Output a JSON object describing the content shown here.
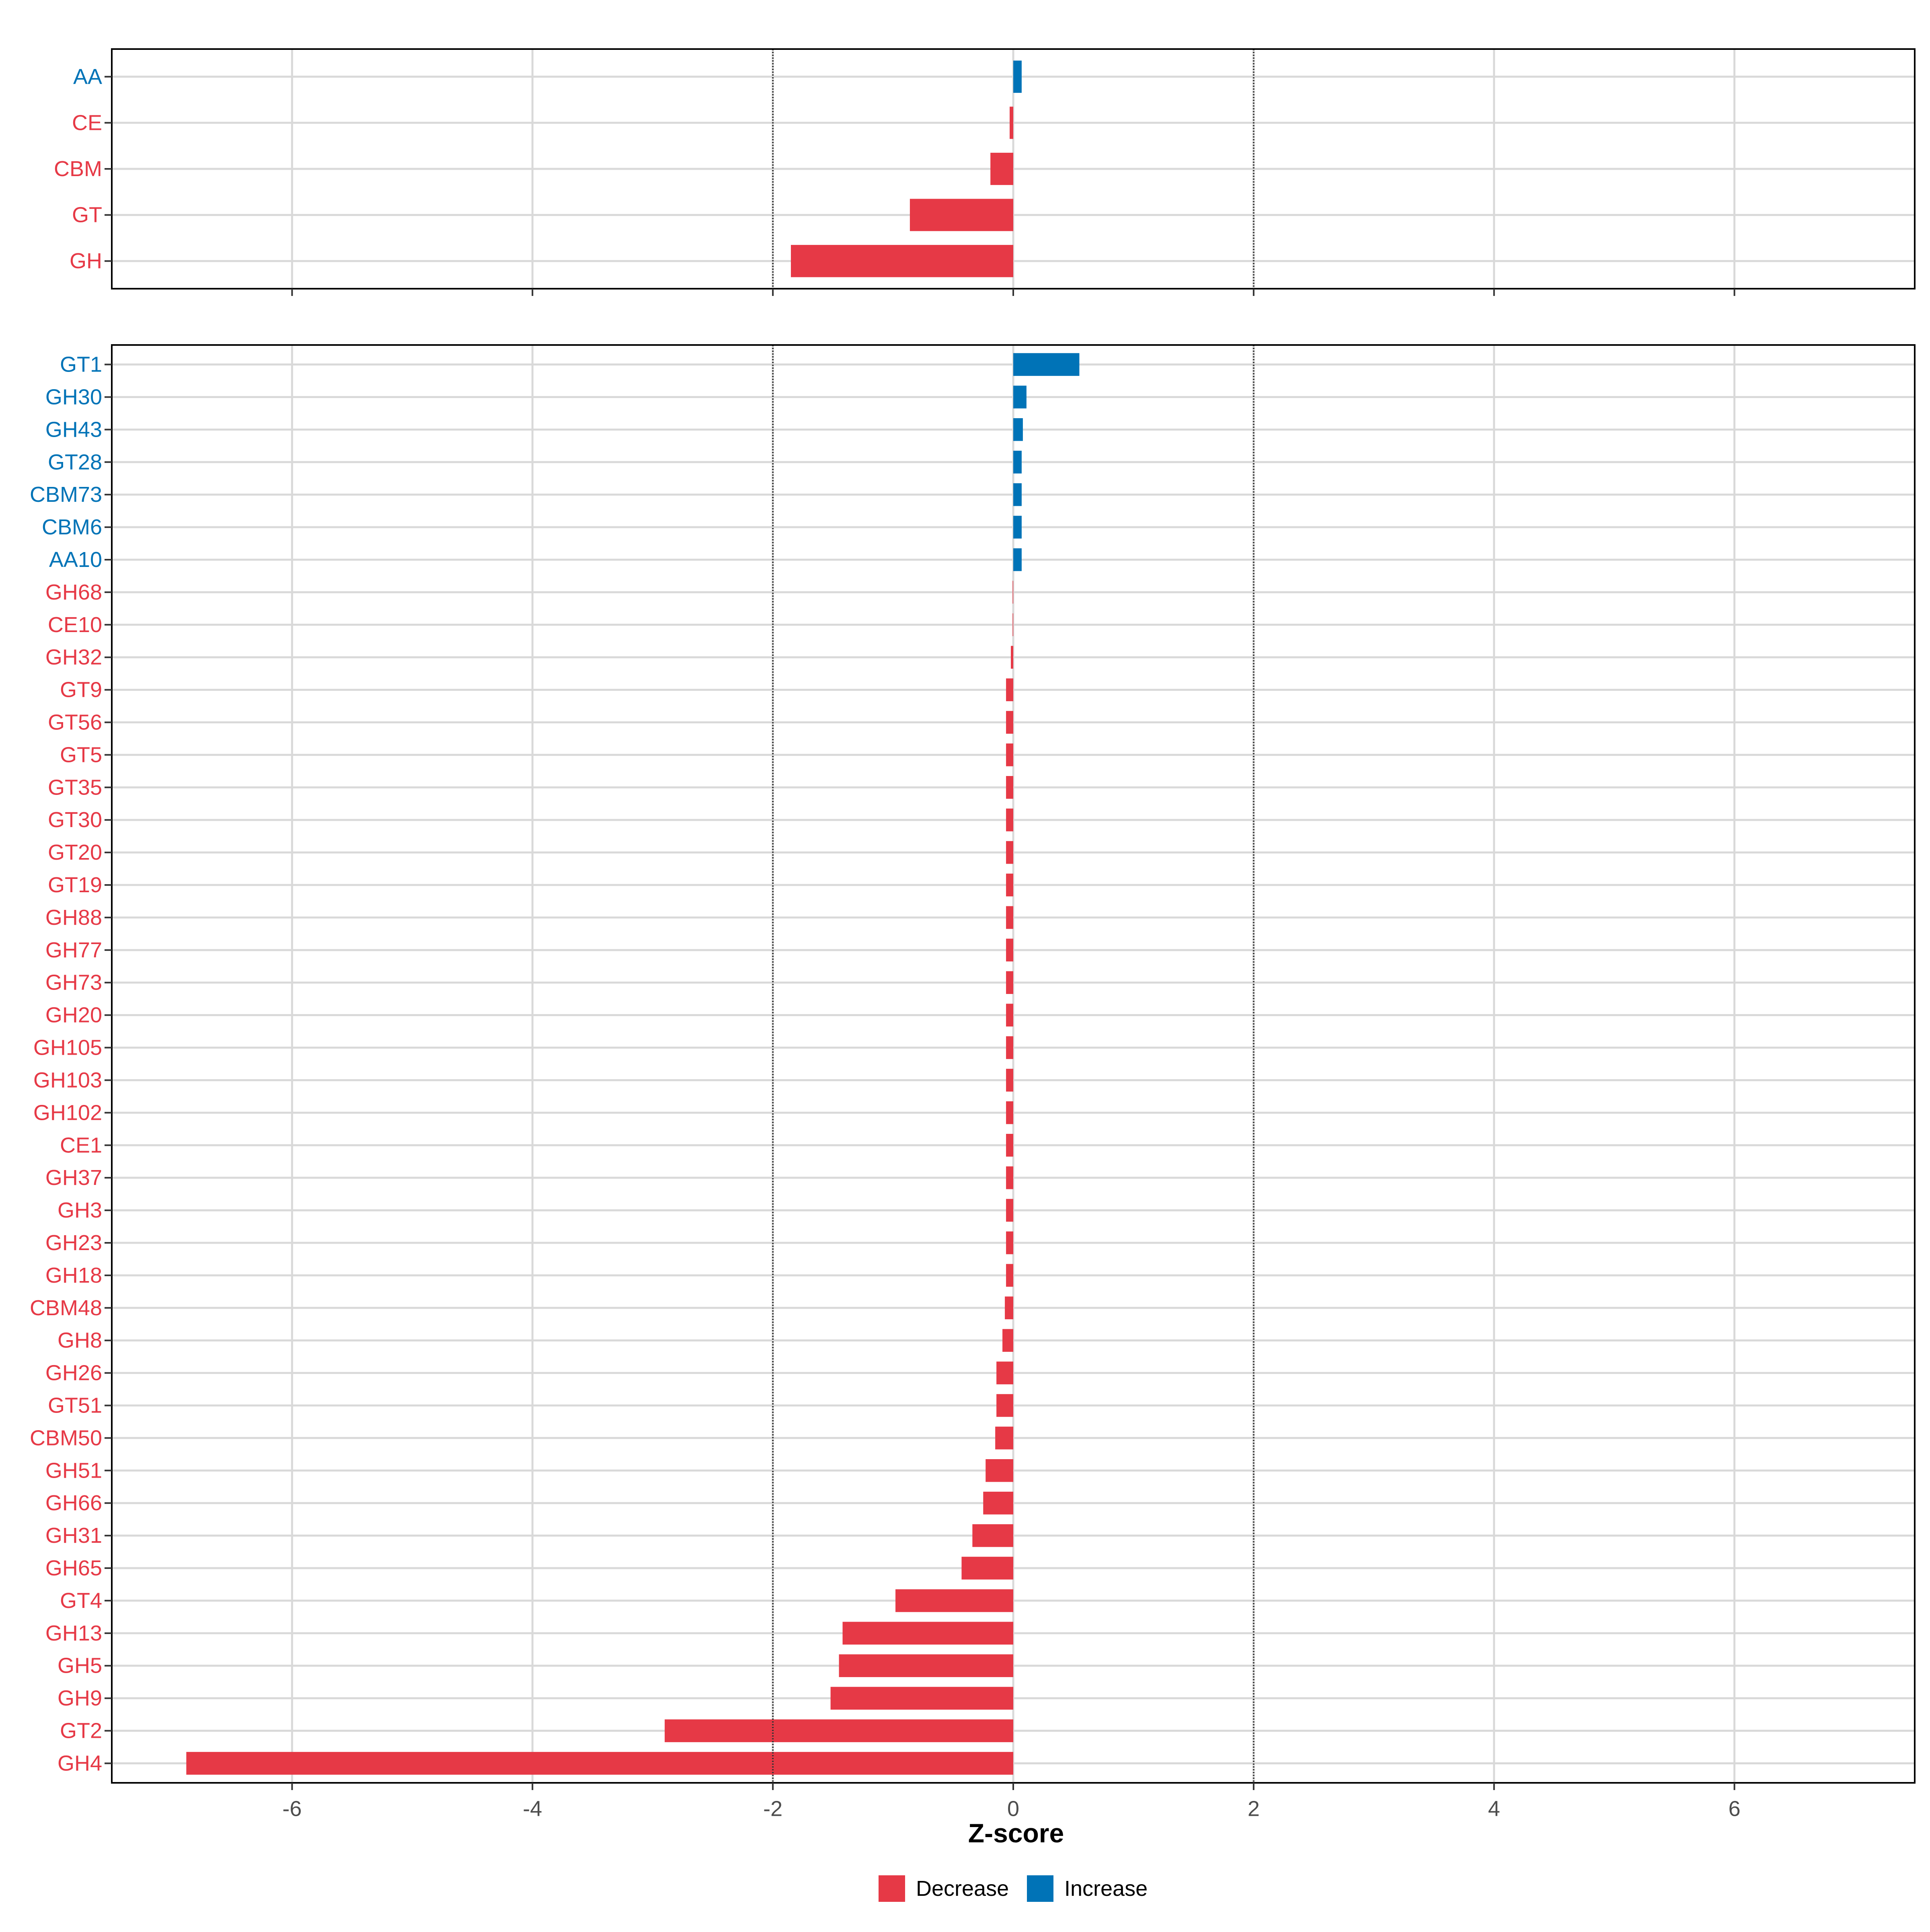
{
  "chart_data": [
    {
      "type": "bar",
      "orientation": "horizontal",
      "panel": "top",
      "categories": [
        "AA",
        "CE",
        "CBM",
        "GT",
        "GH"
      ],
      "values": [
        0.07,
        -0.03,
        -0.19,
        -0.86,
        -1.85
      ],
      "direction": [
        "Increase",
        "Decrease",
        "Decrease",
        "Decrease",
        "Decrease"
      ],
      "xlim": [
        -7.5,
        7.5
      ],
      "reference_lines": [
        -2,
        2
      ],
      "grid": true
    },
    {
      "type": "bar",
      "orientation": "horizontal",
      "panel": "bottom",
      "categories": [
        "GT1",
        "GH30",
        "GH43",
        "GT28",
        "CBM73",
        "CBM6",
        "AA10",
        "GH68",
        "CE10",
        "GH32",
        "GT9",
        "GT56",
        "GT5",
        "GT35",
        "GT30",
        "GT20",
        "GT19",
        "GH88",
        "GH77",
        "GH73",
        "GH20",
        "GH105",
        "GH103",
        "GH102",
        "CE1",
        "GH37",
        "GH3",
        "GH23",
        "GH18",
        "CBM48",
        "GH8",
        "GH26",
        "GT51",
        "CBM50",
        "GH51",
        "GH66",
        "GH31",
        "GH65",
        "GT4",
        "GH13",
        "GH5",
        "GH9",
        "GT2",
        "GH4"
      ],
      "values": [
        0.55,
        0.11,
        0.08,
        0.07,
        0.07,
        0.07,
        0.07,
        -0.005,
        -0.005,
        -0.02,
        -0.06,
        -0.06,
        -0.06,
        -0.06,
        -0.06,
        -0.06,
        -0.06,
        -0.06,
        -0.06,
        -0.06,
        -0.06,
        -0.06,
        -0.06,
        -0.06,
        -0.06,
        -0.06,
        -0.06,
        -0.06,
        -0.06,
        -0.07,
        -0.09,
        -0.14,
        -0.14,
        -0.15,
        -0.23,
        -0.25,
        -0.34,
        -0.43,
        -0.98,
        -1.42,
        -1.45,
        -1.52,
        -2.9,
        -6.88
      ],
      "direction": [
        "Increase",
        "Increase",
        "Increase",
        "Increase",
        "Increase",
        "Increase",
        "Increase",
        "Decrease",
        "Decrease",
        "Decrease",
        "Decrease",
        "Decrease",
        "Decrease",
        "Decrease",
        "Decrease",
        "Decrease",
        "Decrease",
        "Decrease",
        "Decrease",
        "Decrease",
        "Decrease",
        "Decrease",
        "Decrease",
        "Decrease",
        "Decrease",
        "Decrease",
        "Decrease",
        "Decrease",
        "Decrease",
        "Decrease",
        "Decrease",
        "Decrease",
        "Decrease",
        "Decrease",
        "Decrease",
        "Decrease",
        "Decrease",
        "Decrease",
        "Decrease",
        "Decrease",
        "Decrease",
        "Decrease",
        "Decrease",
        "Decrease"
      ],
      "xlim": [
        -7.5,
        7.5
      ],
      "reference_lines": [
        -2,
        2
      ],
      "grid": true
    }
  ],
  "x_ticks": [
    -6,
    -4,
    -2,
    0,
    2,
    4,
    6
  ],
  "x_tick_labels": [
    "-6",
    "-4",
    "-2",
    "0",
    "2",
    "4",
    "6"
  ],
  "xlabel": "Z-score",
  "legend": {
    "placement": "bottom",
    "items": [
      {
        "label": "Decrease",
        "color": "#e63946"
      },
      {
        "label": "Increase",
        "color": "#0073b7"
      }
    ]
  },
  "colors": {
    "Decrease": "#e63946",
    "Increase": "#0073b7",
    "grid": "#d9d9d9",
    "panel_border": "#000000",
    "reference_line": "#333333"
  }
}
